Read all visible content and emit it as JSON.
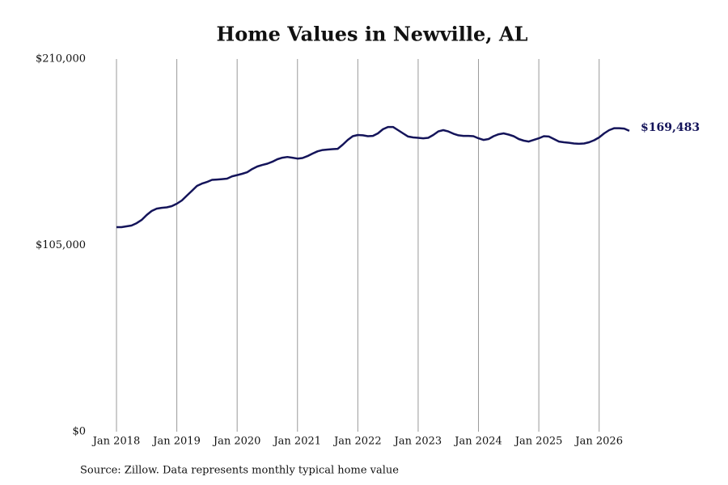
{
  "chart_data": {
    "type": "line",
    "title": "Home Values in Newville, AL",
    "note": "Source: Zillow. Data represents monthly typical home value",
    "x": [
      "2018-01",
      "2018-02",
      "2018-03",
      "2018-04",
      "2018-05",
      "2018-06",
      "2018-07",
      "2018-08",
      "2018-09",
      "2018-10",
      "2018-11",
      "2018-12",
      "2019-01",
      "2019-02",
      "2019-03",
      "2019-04",
      "2019-05",
      "2019-06",
      "2019-07",
      "2019-08",
      "2019-09",
      "2019-10",
      "2019-11",
      "2019-12",
      "2020-01",
      "2020-02",
      "2020-03",
      "2020-04",
      "2020-05",
      "2020-06",
      "2020-07",
      "2020-08",
      "2020-09",
      "2020-10",
      "2020-11",
      "2020-12",
      "2021-01",
      "2021-02",
      "2021-03",
      "2021-04",
      "2021-05",
      "2021-06",
      "2021-07",
      "2021-08",
      "2021-09",
      "2021-10",
      "2021-11",
      "2021-12",
      "2022-01",
      "2022-02",
      "2022-03",
      "2022-04",
      "2022-05",
      "2022-06",
      "2022-07",
      "2022-08",
      "2022-09",
      "2022-10",
      "2022-11",
      "2022-12",
      "2023-01",
      "2023-02",
      "2023-03",
      "2023-04",
      "2023-05",
      "2023-06",
      "2023-07",
      "2023-08",
      "2023-09",
      "2023-10",
      "2023-11",
      "2023-12",
      "2024-01",
      "2024-02",
      "2024-03",
      "2024-04",
      "2024-05",
      "2024-06",
      "2024-07",
      "2024-08",
      "2024-09",
      "2024-10",
      "2024-11",
      "2024-12",
      "2025-01",
      "2025-02",
      "2025-03",
      "2025-04",
      "2025-05",
      "2025-06",
      "2025-07",
      "2025-08",
      "2025-09",
      "2025-10",
      "2025-11",
      "2025-12",
      "2026-01",
      "2026-02",
      "2026-03",
      "2026-04",
      "2026-05",
      "2026-06",
      "2026-07"
    ],
    "series": [
      {
        "name": "Home Values",
        "color": "#14145a",
        "values": [
          115250,
          115250,
          115700,
          116150,
          117500,
          119300,
          122100,
          124350,
          125700,
          126150,
          126400,
          127100,
          128450,
          130300,
          133000,
          135700,
          138500,
          139800,
          140700,
          141900,
          142100,
          142300,
          142600,
          143900,
          144600,
          145300,
          146200,
          148000,
          149400,
          150300,
          151000,
          152100,
          153500,
          154400,
          154800,
          154400,
          153900,
          154200,
          155300,
          156700,
          158000,
          158700,
          159000,
          159200,
          159400,
          161700,
          164400,
          166500,
          167200,
          167000,
          166500,
          166700,
          168100,
          170400,
          171700,
          171700,
          169900,
          168100,
          166300,
          165800,
          165600,
          165300,
          165600,
          167200,
          169200,
          169900,
          169200,
          167900,
          167000,
          166700,
          166700,
          166500,
          165300,
          164400,
          164900,
          166500,
          167600,
          168100,
          167400,
          166500,
          164900,
          164000,
          163500,
          164400,
          165300,
          166500,
          166300,
          164900,
          163500,
          163100,
          162800,
          162400,
          162200,
          162400,
          163100,
          164200,
          165800,
          168100,
          169900,
          171000,
          171000,
          170800,
          169483
        ],
        "end_label": "$169,483"
      }
    ],
    "xlim": [
      "2018-01",
      "2026-07"
    ],
    "xticks": [
      {
        "value": "2018-01",
        "label": "Jan 2018"
      },
      {
        "value": "2019-01",
        "label": "Jan 2019"
      },
      {
        "value": "2020-01",
        "label": "Jan 2020"
      },
      {
        "value": "2021-01",
        "label": "Jan 2021"
      },
      {
        "value": "2022-01",
        "label": "Jan 2022"
      },
      {
        "value": "2023-01",
        "label": "Jan 2023"
      },
      {
        "value": "2024-01",
        "label": "Jan 2024"
      },
      {
        "value": "2025-01",
        "label": "Jan 2025"
      },
      {
        "value": "2026-01",
        "label": "Jan 2026"
      }
    ],
    "ylim": [
      0,
      210000
    ],
    "yticks": [
      {
        "value": 0,
        "label": "$0"
      },
      {
        "value": 105000,
        "label": "$105,000"
      },
      {
        "value": 210000,
        "label": "$210,000"
      }
    ],
    "grid": "x"
  }
}
